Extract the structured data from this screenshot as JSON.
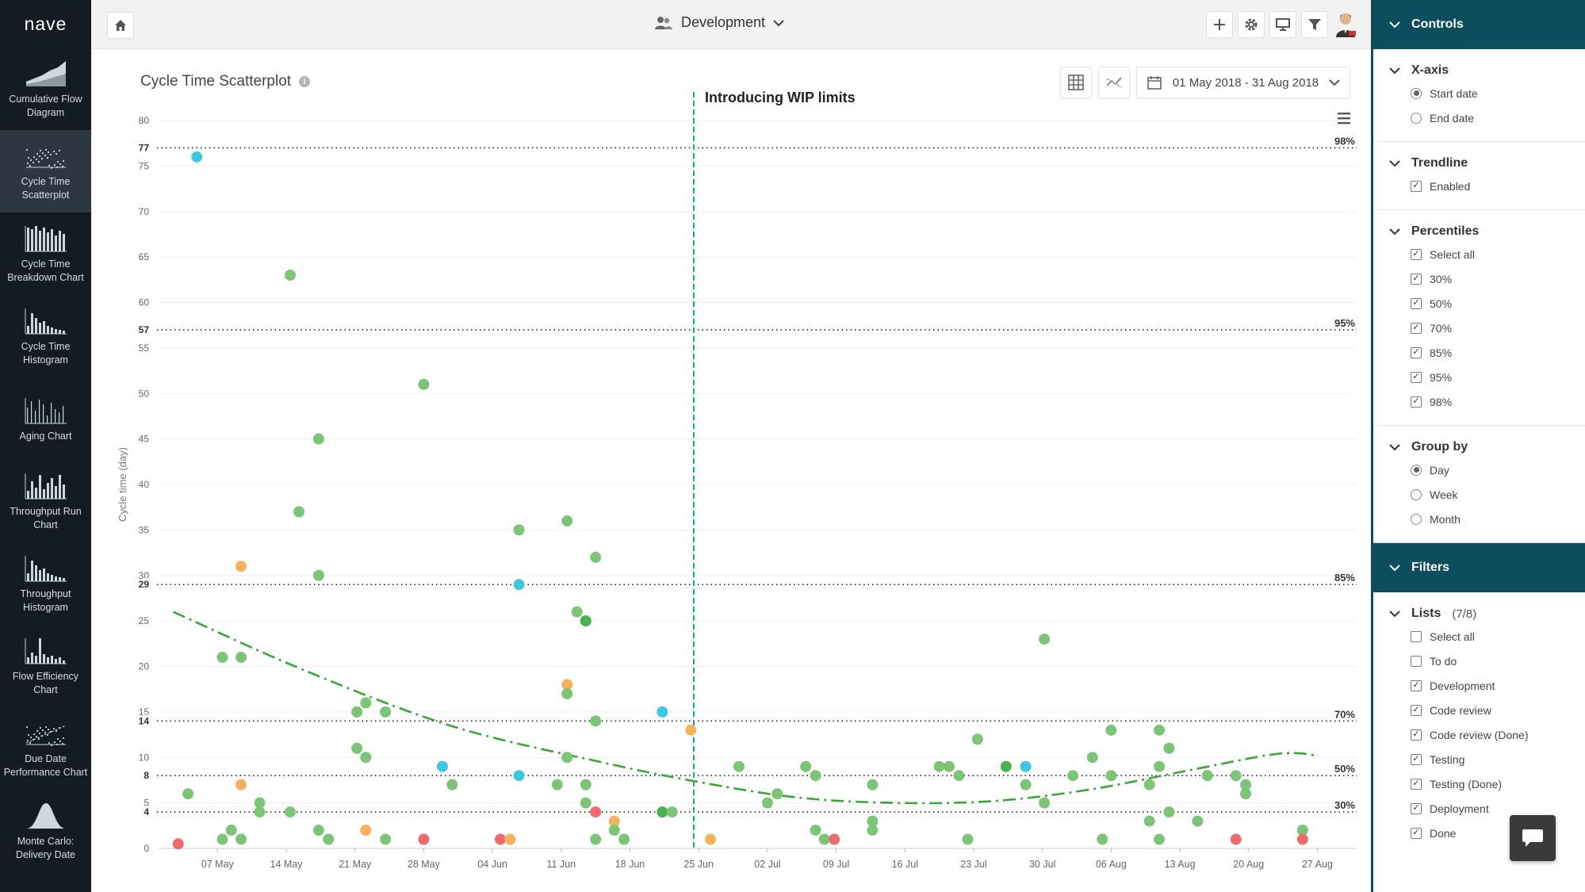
{
  "app": {
    "brand": "nave"
  },
  "nav": {
    "items": [
      {
        "id": "cfd",
        "label": "Cumulative Flow Diagram",
        "icon": "area-chart-icon"
      },
      {
        "id": "scatter",
        "label": "Cycle Time Scatterplot",
        "icon": "scatter-chart-icon",
        "active": true
      },
      {
        "id": "breakdown",
        "label": "Cycle Time Breakdown Chart",
        "icon": "stacked-bar-icon"
      },
      {
        "id": "histogram",
        "label": "Cycle Time Histogram",
        "icon": "histogram-icon"
      },
      {
        "id": "aging",
        "label": "Aging Chart",
        "icon": "aging-chart-icon"
      },
      {
        "id": "throughput-run",
        "label": "Throughput Run Chart",
        "icon": "run-chart-icon"
      },
      {
        "id": "throughput-hist",
        "label": "Throughput Histogram",
        "icon": "histogram-icon"
      },
      {
        "id": "flow-eff",
        "label": "Flow Efficiency Chart",
        "icon": "flow-efficiency-icon"
      },
      {
        "id": "due-date",
        "label": "Due Date Performance Chart",
        "icon": "due-date-icon"
      },
      {
        "id": "monte-carlo",
        "label": "Monte Carlo: Delivery Date",
        "icon": "bell-curve-icon"
      }
    ]
  },
  "topbar": {
    "board": "Development"
  },
  "chart": {
    "title": "Cycle Time Scatterplot",
    "date_range": "01 May 2018 - 31 Aug 2018",
    "annotation": "Introducing WIP limits"
  },
  "colors": {
    "green": "#7cc576",
    "dark_green": "#4caf50",
    "cyan": "#3fc6e0",
    "orange": "#f7b05b",
    "red": "#ef6b6b",
    "teal": "#0c4d5e",
    "trend": "#3aa63a",
    "wip_line": "#1aa39b"
  },
  "chart_data": {
    "type": "scatter",
    "title": "Cycle Time Scatterplot",
    "xlabel": "",
    "ylabel": "Cycle time (day)",
    "x_start": "01 May 2018",
    "x_end": "31 Aug 2018",
    "x_ticks": [
      "07 May",
      "14 May",
      "21 May",
      "28 May",
      "04 Jun",
      "11 Jun",
      "18 Jun",
      "25 Jun",
      "02 Jul",
      "09 Jul",
      "16 Jul",
      "23 Jul",
      "30 Jul",
      "06 Aug",
      "13 Aug",
      "20 Aug",
      "27 Aug"
    ],
    "y_ticks": [
      0,
      5,
      10,
      15,
      20,
      25,
      30,
      35,
      40,
      45,
      50,
      55,
      60,
      65,
      70,
      75,
      80
    ],
    "ylim": [
      0,
      80
    ],
    "grid": true,
    "percentiles": [
      {
        "label": "98%",
        "value": 77
      },
      {
        "label": "95%",
        "value": 57
      },
      {
        "label": "85%",
        "value": 29
      },
      {
        "label": "70%",
        "value": 14
      },
      {
        "label": "50%",
        "value": 8
      },
      {
        "label": "30%",
        "value": 4
      }
    ],
    "vertical_marker": {
      "label": "Introducing WIP limits",
      "date": "24 Jun"
    },
    "trendline": [
      [
        1.5,
        26
      ],
      [
        15,
        19.5
      ],
      [
        30,
        13.4
      ],
      [
        45,
        9.5
      ],
      [
        55,
        7.3
      ],
      [
        65,
        5.6
      ],
      [
        75,
        5
      ],
      [
        85,
        5.2
      ],
      [
        95,
        6.5
      ],
      [
        105,
        8.6
      ],
      [
        114,
        10.4
      ],
      [
        118,
        10.2
      ]
    ],
    "points": [
      {
        "x": 2,
        "y": 0.5,
        "c": "red"
      },
      {
        "x": 3,
        "y": 6,
        "c": "green"
      },
      {
        "x": 3.9,
        "y": 76,
        "c": "cyan"
      },
      {
        "x": 6.5,
        "y": 21,
        "c": "green"
      },
      {
        "x": 6.5,
        "y": 1,
        "c": "green"
      },
      {
        "x": 7.4,
        "y": 2,
        "c": "green"
      },
      {
        "x": 8.4,
        "y": 21,
        "c": "green"
      },
      {
        "x": 8.4,
        "y": 31,
        "c": "orange"
      },
      {
        "x": 8.4,
        "y": 7,
        "c": "orange"
      },
      {
        "x": 8.4,
        "y": 1,
        "c": "green"
      },
      {
        "x": 10.3,
        "y": 5,
        "c": "green"
      },
      {
        "x": 10.3,
        "y": 4,
        "c": "green"
      },
      {
        "x": 13.4,
        "y": 63,
        "c": "green"
      },
      {
        "x": 13.4,
        "y": 4,
        "c": "green"
      },
      {
        "x": 14.3,
        "y": 37,
        "c": "green"
      },
      {
        "x": 16.3,
        "y": 45,
        "c": "green"
      },
      {
        "x": 16.3,
        "y": 30,
        "c": "green"
      },
      {
        "x": 16.3,
        "y": 2,
        "c": "green"
      },
      {
        "x": 17.3,
        "y": 1,
        "c": "green"
      },
      {
        "x": 20.2,
        "y": 15,
        "c": "green"
      },
      {
        "x": 20.2,
        "y": 11,
        "c": "green"
      },
      {
        "x": 21.1,
        "y": 16,
        "c": "green"
      },
      {
        "x": 21.1,
        "y": 10,
        "c": "green"
      },
      {
        "x": 21.1,
        "y": 2,
        "c": "orange"
      },
      {
        "x": 23.1,
        "y": 15,
        "c": "green"
      },
      {
        "x": 23.1,
        "y": 1,
        "c": "green"
      },
      {
        "x": 27,
        "y": 51,
        "c": "green"
      },
      {
        "x": 27,
        "y": 1,
        "c": "red"
      },
      {
        "x": 28.9,
        "y": 9,
        "c": "cyan"
      },
      {
        "x": 29.9,
        "y": 7,
        "c": "green"
      },
      {
        "x": 34.8,
        "y": 1,
        "c": "red"
      },
      {
        "x": 35.8,
        "y": 1,
        "c": "orange"
      },
      {
        "x": 36.7,
        "y": 35,
        "c": "green"
      },
      {
        "x": 36.7,
        "y": 29,
        "c": "cyan"
      },
      {
        "x": 36.7,
        "y": 8,
        "c": "cyan"
      },
      {
        "x": 40.6,
        "y": 7,
        "c": "green"
      },
      {
        "x": 41.6,
        "y": 36,
        "c": "green"
      },
      {
        "x": 41.6,
        "y": 18,
        "c": "orange"
      },
      {
        "x": 41.6,
        "y": 17,
        "c": "green"
      },
      {
        "x": 41.6,
        "y": 10,
        "c": "green"
      },
      {
        "x": 42.6,
        "y": 26,
        "c": "green"
      },
      {
        "x": 43.5,
        "y": 25,
        "c": "dark_green"
      },
      {
        "x": 43.5,
        "y": 7,
        "c": "green"
      },
      {
        "x": 43.5,
        "y": 5,
        "c": "green"
      },
      {
        "x": 44.5,
        "y": 32,
        "c": "green"
      },
      {
        "x": 44.5,
        "y": 14,
        "c": "green"
      },
      {
        "x": 44.5,
        "y": 4,
        "c": "red"
      },
      {
        "x": 44.5,
        "y": 1,
        "c": "green"
      },
      {
        "x": 46.4,
        "y": 3,
        "c": "orange"
      },
      {
        "x": 46.4,
        "y": 2,
        "c": "green"
      },
      {
        "x": 47.4,
        "y": 1,
        "c": "green"
      },
      {
        "x": 51.3,
        "y": 4,
        "c": "dark_green"
      },
      {
        "x": 51.3,
        "y": 15,
        "c": "cyan"
      },
      {
        "x": 52.3,
        "y": 4,
        "c": "green"
      },
      {
        "x": 54.2,
        "y": 13,
        "c": "orange"
      },
      {
        "x": 56.2,
        "y": 1,
        "c": "orange"
      },
      {
        "x": 59.1,
        "y": 9,
        "c": "green"
      },
      {
        "x": 62,
        "y": 5,
        "c": "green"
      },
      {
        "x": 63,
        "y": 6,
        "c": "green"
      },
      {
        "x": 65.9,
        "y": 9,
        "c": "green"
      },
      {
        "x": 66.9,
        "y": 8,
        "c": "green"
      },
      {
        "x": 66.9,
        "y": 2,
        "c": "green"
      },
      {
        "x": 67.8,
        "y": 1,
        "c": "green"
      },
      {
        "x": 68.8,
        "y": 1,
        "c": "red"
      },
      {
        "x": 72.7,
        "y": 7,
        "c": "green"
      },
      {
        "x": 72.7,
        "y": 3,
        "c": "green"
      },
      {
        "x": 72.7,
        "y": 2,
        "c": "green"
      },
      {
        "x": 79.5,
        "y": 9,
        "c": "green"
      },
      {
        "x": 80.5,
        "y": 9,
        "c": "green"
      },
      {
        "x": 81.5,
        "y": 8,
        "c": "green"
      },
      {
        "x": 82.4,
        "y": 1,
        "c": "green"
      },
      {
        "x": 83.4,
        "y": 12,
        "c": "green"
      },
      {
        "x": 86.3,
        "y": 9,
        "c": "dark_green"
      },
      {
        "x": 88.3,
        "y": 9,
        "c": "cyan"
      },
      {
        "x": 88.3,
        "y": 7,
        "c": "green"
      },
      {
        "x": 90.2,
        "y": 23,
        "c": "green"
      },
      {
        "x": 90.2,
        "y": 5,
        "c": "green"
      },
      {
        "x": 93.1,
        "y": 8,
        "c": "green"
      },
      {
        "x": 95.1,
        "y": 10,
        "c": "green"
      },
      {
        "x": 96.1,
        "y": 1,
        "c": "green"
      },
      {
        "x": 97,
        "y": 13,
        "c": "green"
      },
      {
        "x": 97,
        "y": 8,
        "c": "green"
      },
      {
        "x": 100.9,
        "y": 7,
        "c": "green"
      },
      {
        "x": 100.9,
        "y": 3,
        "c": "green"
      },
      {
        "x": 101.9,
        "y": 13,
        "c": "green"
      },
      {
        "x": 101.9,
        "y": 9,
        "c": "green"
      },
      {
        "x": 101.9,
        "y": 1,
        "c": "green"
      },
      {
        "x": 102.9,
        "y": 11,
        "c": "green"
      },
      {
        "x": 102.9,
        "y": 4,
        "c": "green"
      },
      {
        "x": 105.8,
        "y": 3,
        "c": "green"
      },
      {
        "x": 106.8,
        "y": 8,
        "c": "green"
      },
      {
        "x": 109.7,
        "y": 1,
        "c": "red"
      },
      {
        "x": 109.7,
        "y": 8,
        "c": "green"
      },
      {
        "x": 110.7,
        "y": 7,
        "c": "green"
      },
      {
        "x": 110.7,
        "y": 6,
        "c": "green"
      },
      {
        "x": 116.5,
        "y": 2,
        "c": "green"
      },
      {
        "x": 116.5,
        "y": 1,
        "c": "red"
      }
    ]
  },
  "controls": {
    "title": "Controls",
    "xaxis": {
      "title": "X-axis",
      "options": [
        {
          "label": "Start date",
          "on": true
        },
        {
          "label": "End date",
          "on": false
        }
      ]
    },
    "trendline": {
      "title": "Trendline",
      "options": [
        {
          "label": "Enabled",
          "on": true
        }
      ]
    },
    "percentiles": {
      "title": "Percentiles",
      "options": [
        {
          "label": "Select all",
          "on": true
        },
        {
          "label": "30%",
          "on": true
        },
        {
          "label": "50%",
          "on": true
        },
        {
          "label": "70%",
          "on": true
        },
        {
          "label": "85%",
          "on": true
        },
        {
          "label": "95%",
          "on": true
        },
        {
          "label": "98%",
          "on": true
        }
      ]
    },
    "groupby": {
      "title": "Group by",
      "options": [
        {
          "label": "Day",
          "on": true
        },
        {
          "label": "Week",
          "on": false
        },
        {
          "label": "Month",
          "on": false
        }
      ]
    },
    "filters_title": "Filters",
    "lists": {
      "title": "Lists",
      "count": "(7/8)",
      "options": [
        {
          "label": "Select all",
          "on": false
        },
        {
          "label": "To do",
          "on": false
        },
        {
          "label": "Development",
          "on": true
        },
        {
          "label": "Code review",
          "on": true
        },
        {
          "label": "Code review (Done)",
          "on": true
        },
        {
          "label": "Testing",
          "on": true
        },
        {
          "label": "Testing (Done)",
          "on": true
        },
        {
          "label": "Deployment",
          "on": true
        },
        {
          "label": "Done",
          "on": true
        }
      ]
    }
  }
}
